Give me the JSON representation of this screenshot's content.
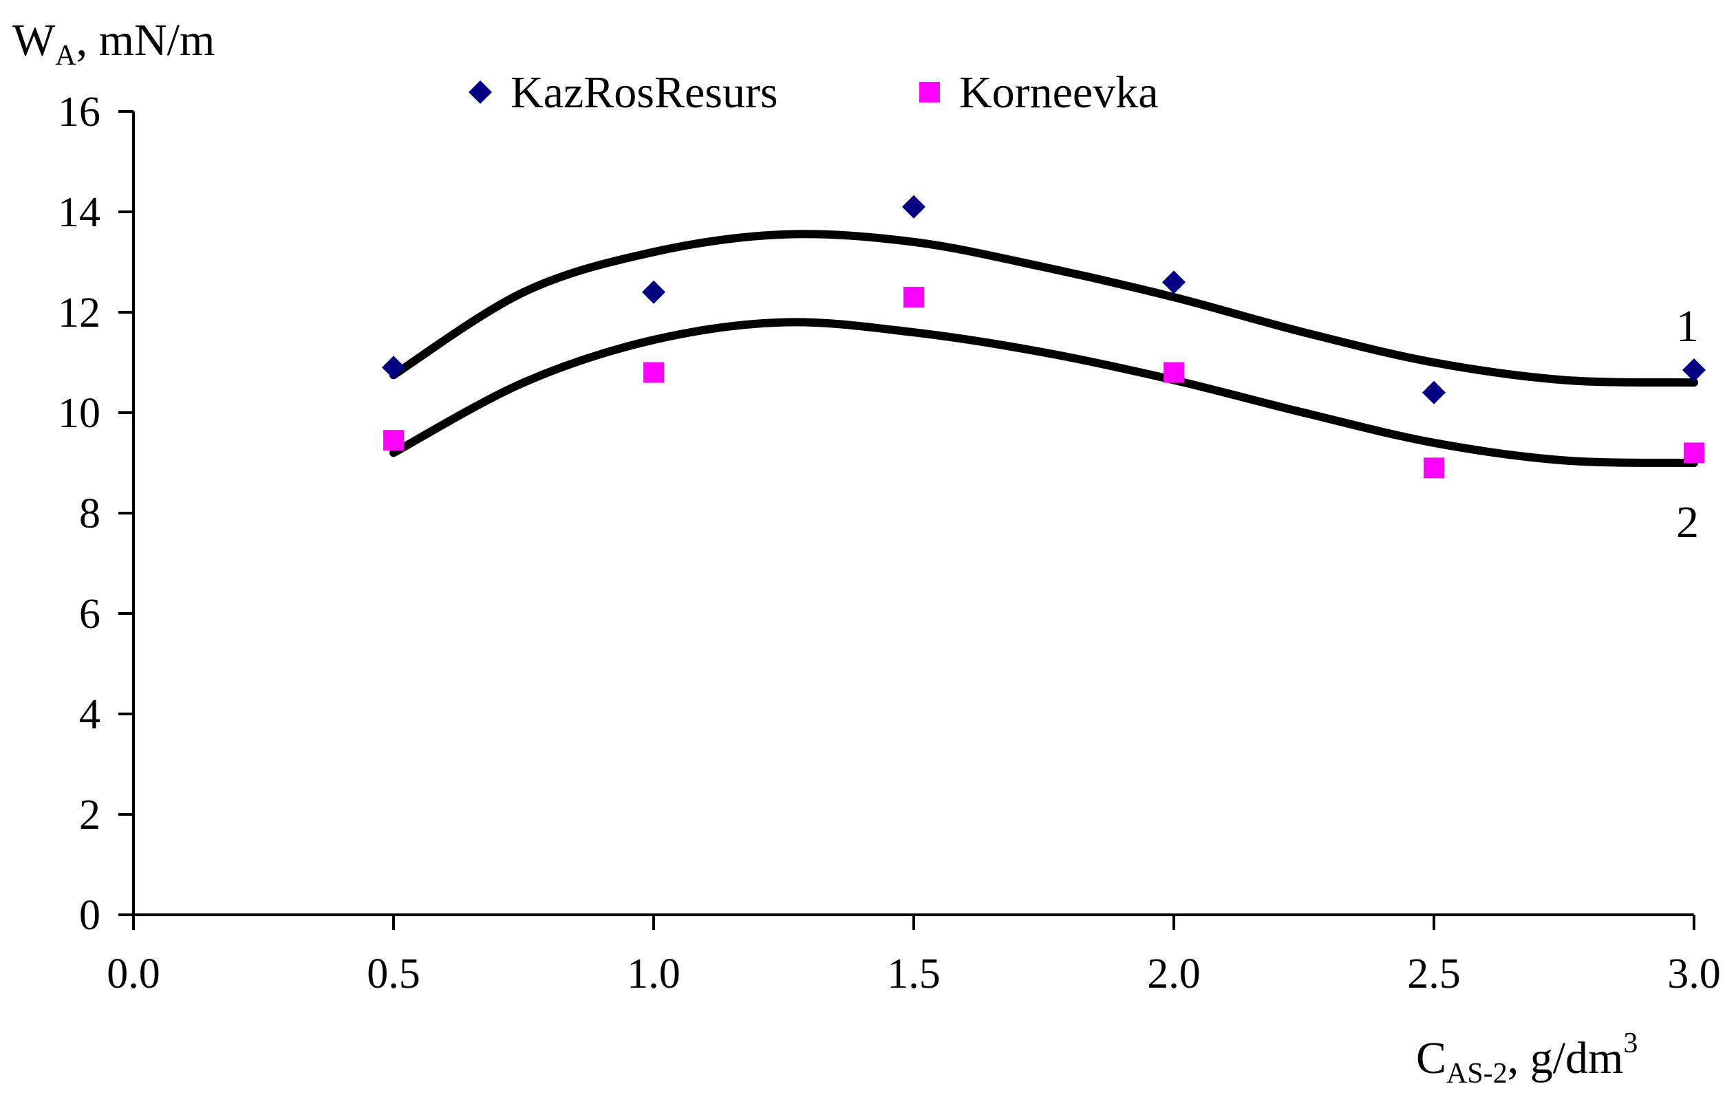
{
  "chart_data": {
    "type": "scatter",
    "title": "",
    "ylabel": {
      "main": "W",
      "sub": "A",
      "rest": ", mN/m"
    },
    "xlabel": {
      "main": "C",
      "sub": "AS-2",
      "rest": ", g/dm",
      "sup": "3"
    },
    "xlim": [
      0.0,
      3.0
    ],
    "ylim": [
      0,
      16
    ],
    "x_ticks": [
      "0.0",
      "0.5",
      "1.0",
      "1.5",
      "2.0",
      "2.5",
      "3.0"
    ],
    "y_ticks": [
      "0",
      "2",
      "4",
      "6",
      "8",
      "10",
      "12",
      "14",
      "16"
    ],
    "grid": false,
    "legend_position": "top-center",
    "series": [
      {
        "name": "KazRosResurs",
        "marker": "diamond",
        "color": "#000080",
        "x": [
          0.5,
          1.0,
          1.5,
          2.0,
          2.5,
          3.0
        ],
        "values": [
          10.9,
          12.4,
          14.1,
          12.6,
          10.4,
          10.85
        ]
      },
      {
        "name": "Korneevka",
        "marker": "square",
        "color": "#ff00ff",
        "x": [
          0.5,
          1.0,
          1.5,
          2.0,
          2.5,
          3.0
        ],
        "values": [
          9.45,
          10.8,
          12.3,
          10.8,
          8.9,
          9.2
        ]
      }
    ],
    "trendlines": [
      {
        "label": "1",
        "color": "#000000",
        "x": [
          0.5,
          0.75,
          1.0,
          1.25,
          1.5,
          1.75,
          2.0,
          2.25,
          2.5,
          2.75,
          3.0
        ],
        "values": [
          10.75,
          12.4,
          13.2,
          13.55,
          13.4,
          12.9,
          12.3,
          11.6,
          11.0,
          10.65,
          10.6
        ]
      },
      {
        "label": "2",
        "color": "#000000",
        "x": [
          0.5,
          0.75,
          1.0,
          1.25,
          1.5,
          1.75,
          2.0,
          2.25,
          2.5,
          2.75,
          3.0
        ],
        "values": [
          9.2,
          10.6,
          11.45,
          11.8,
          11.6,
          11.2,
          10.65,
          10.0,
          9.4,
          9.05,
          9.0
        ]
      }
    ]
  }
}
